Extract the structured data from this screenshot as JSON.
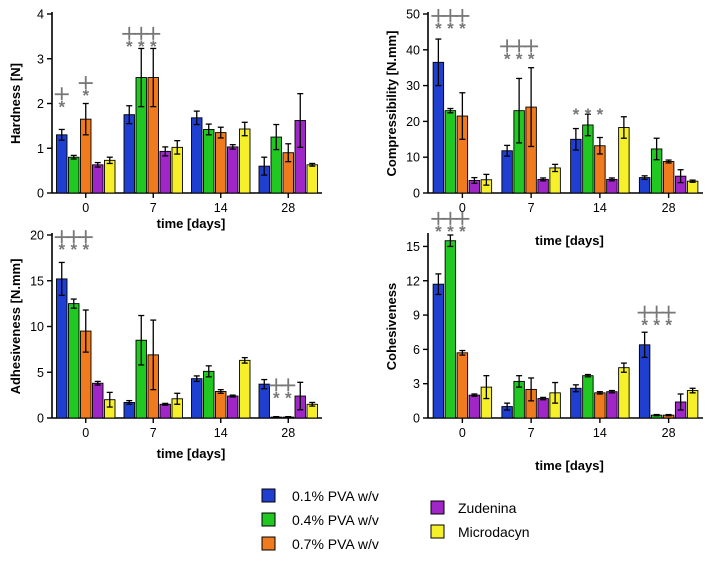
{
  "legend": [
    {
      "label": "0.1% PVA w/v",
      "color": "#1f3fd0"
    },
    {
      "label": "0.4% PVA w/v",
      "color": "#22c822"
    },
    {
      "label": "0.7% PVA w/v",
      "color": "#f07a1e"
    },
    {
      "label": "Zudenina",
      "color": "#a026c8"
    },
    {
      "label": "Microdacyn",
      "color": "#f6f02a"
    }
  ],
  "sig_symbol": "*",
  "chart_data": [
    {
      "type": "bar",
      "title": "",
      "xlabel": "time [days]",
      "ylabel": "Hardness [N]",
      "categories": [
        "0",
        "7",
        "14",
        "28"
      ],
      "ylim": [
        0,
        4
      ],
      "yticks": [
        "0",
        "1",
        "2",
        "3",
        "4"
      ],
      "series": [
        {
          "name": "0.1% PVA w/v",
          "values": [
            1.3,
            1.75,
            1.68,
            0.6
          ],
          "errors": [
            0.12,
            0.2,
            0.15,
            0.2
          ]
        },
        {
          "name": "0.4% PVA w/v",
          "values": [
            0.8,
            2.58,
            1.42,
            1.25
          ],
          "errors": [
            0.04,
            0.65,
            0.12,
            0.28
          ]
        },
        {
          "name": "0.7% PVA w/v",
          "values": [
            1.65,
            2.58,
            1.35,
            0.9
          ],
          "errors": [
            0.35,
            0.65,
            0.12,
            0.2
          ]
        },
        {
          "name": "Zudenina",
          "values": [
            0.63,
            0.93,
            1.03,
            1.62
          ],
          "errors": [
            0.05,
            0.1,
            0.05,
            0.6
          ]
        },
        {
          "name": "Microdacyn",
          "values": [
            0.73,
            1.02,
            1.43,
            0.63
          ],
          "errors": [
            0.07,
            0.15,
            0.15,
            0.03
          ]
        }
      ],
      "significance": [
        {
          "category": "0",
          "series_index": 0,
          "y": 2.05
        },
        {
          "category": "0",
          "series_index": 2,
          "y": 2.3
        },
        {
          "category": "7",
          "series_index": 0,
          "y": 3.4
        },
        {
          "category": "7",
          "series_index": 1,
          "y": 3.4
        },
        {
          "category": "7",
          "series_index": 2,
          "y": 3.4
        }
      ]
    },
    {
      "type": "bar",
      "title": "",
      "xlabel": "time [days]",
      "ylabel": "Compressibility [N.mm]",
      "categories": [
        "0",
        "7",
        "14",
        "28"
      ],
      "ylim": [
        0,
        50
      ],
      "yticks": [
        "0",
        "10",
        "20",
        "30",
        "40",
        "50"
      ],
      "series": [
        {
          "name": "0.1% PVA w/v",
          "values": [
            36.5,
            11.8,
            15.0,
            4.3
          ],
          "errors": [
            6.5,
            1.5,
            3.0,
            0.5
          ]
        },
        {
          "name": "0.4% PVA w/v",
          "values": [
            23.0,
            23.0,
            19.0,
            12.3
          ],
          "errors": [
            0.6,
            9.0,
            3.0,
            3.0
          ]
        },
        {
          "name": "0.7% PVA w/v",
          "values": [
            21.5,
            24.0,
            13.2,
            8.8
          ],
          "errors": [
            6.5,
            11.0,
            2.3,
            0.4
          ]
        },
        {
          "name": "Zudenina",
          "values": [
            3.5,
            3.8,
            3.8,
            4.7
          ],
          "errors": [
            0.8,
            0.4,
            0.4,
            1.8
          ]
        },
        {
          "name": "Microdacyn",
          "values": [
            3.7,
            7.0,
            18.3,
            3.3
          ],
          "errors": [
            1.5,
            1.0,
            3.0,
            0.3
          ]
        }
      ],
      "significance": [
        {
          "category": "0",
          "series_index": 0,
          "y": 47.5
        },
        {
          "category": "0",
          "series_index": 1,
          "y": 47.5
        },
        {
          "category": "0",
          "series_index": 2,
          "y": 47.5
        },
        {
          "category": "7",
          "series_index": 0,
          "y": 39
        },
        {
          "category": "7",
          "series_index": 1,
          "y": 39
        },
        {
          "category": "7",
          "series_index": 2,
          "y": 39
        },
        {
          "category": "14",
          "series_index": 0,
          "y": 23.5,
          "bracket": false
        },
        {
          "category": "14",
          "series_index": 1,
          "y": 23.5,
          "bracket": false
        },
        {
          "category": "14",
          "series_index": 2,
          "y": 23.5,
          "bracket": false
        }
      ]
    },
    {
      "type": "bar",
      "title": "",
      "xlabel": "time [days]",
      "ylabel": "Adhesiveness [N.mm]",
      "categories": [
        "0",
        "7",
        "14",
        "28"
      ],
      "ylim": [
        0,
        20
      ],
      "yticks": [
        "0",
        "5",
        "10",
        "15",
        "20"
      ],
      "series": [
        {
          "name": "0.1% PVA w/v",
          "values": [
            15.2,
            1.7,
            4.3,
            3.7
          ],
          "errors": [
            1.8,
            0.2,
            0.3,
            0.5
          ]
        },
        {
          "name": "0.4% PVA w/v",
          "values": [
            12.5,
            8.5,
            5.1,
            0.1
          ],
          "errors": [
            0.5,
            2.7,
            0.6,
            0.05
          ]
        },
        {
          "name": "0.7% PVA w/v",
          "values": [
            9.5,
            6.9,
            2.9,
            0.1
          ],
          "errors": [
            2.3,
            3.8,
            0.2,
            0.05
          ]
        },
        {
          "name": "Zudenina",
          "values": [
            3.8,
            1.5,
            2.4,
            2.4
          ],
          "errors": [
            0.2,
            0.1,
            0.1,
            1.5
          ]
        },
        {
          "name": "Microdacyn",
          "values": [
            2.0,
            2.1,
            6.3,
            1.5
          ],
          "errors": [
            0.8,
            0.6,
            0.3,
            0.2
          ]
        }
      ],
      "significance": [
        {
          "category": "0",
          "series_index": 0,
          "y": 19.0
        },
        {
          "category": "0",
          "series_index": 1,
          "y": 19.0
        },
        {
          "category": "0",
          "series_index": 2,
          "y": 19.0
        },
        {
          "category": "28",
          "series_index": 1,
          "y": 2.8
        },
        {
          "category": "28",
          "series_index": 2,
          "y": 2.8
        }
      ]
    },
    {
      "type": "bar",
      "title": "",
      "xlabel": "time [days]",
      "ylabel": "Cohesiveness",
      "categories": [
        "0",
        "7",
        "14",
        "28"
      ],
      "ylim": [
        0,
        16
      ],
      "yticks": [
        "0",
        "3",
        "6",
        "9",
        "12",
        "15"
      ],
      "series": [
        {
          "name": "0.1% PVA w/v",
          "values": [
            11.7,
            1.0,
            2.6,
            6.4
          ],
          "errors": [
            0.9,
            0.3,
            0.3,
            1.1
          ]
        },
        {
          "name": "0.4% PVA w/v",
          "values": [
            15.5,
            3.2,
            3.7,
            0.25
          ],
          "errors": [
            0.5,
            0.5,
            0.1,
            0.05
          ]
        },
        {
          "name": "0.7% PVA w/v",
          "values": [
            5.7,
            2.5,
            2.2,
            0.25
          ],
          "errors": [
            0.2,
            1.0,
            0.1,
            0.05
          ]
        },
        {
          "name": "Zudenina",
          "values": [
            2.0,
            1.7,
            2.3,
            1.4
          ],
          "errors": [
            0.1,
            0.1,
            0.1,
            0.7
          ]
        },
        {
          "name": "Microdacyn",
          "values": [
            2.7,
            2.2,
            4.4,
            2.4
          ],
          "errors": [
            1.0,
            0.9,
            0.4,
            0.2
          ]
        }
      ],
      "significance": [
        {
          "category": "0",
          "series_index": 0,
          "y": 16.8
        },
        {
          "category": "0",
          "series_index": 1,
          "y": 16.8
        },
        {
          "category": "0",
          "series_index": 2,
          "y": 16.8
        },
        {
          "category": "28",
          "series_index": 0,
          "y": 8.6
        },
        {
          "category": "28",
          "series_index": 1,
          "y": 8.6
        },
        {
          "category": "28",
          "series_index": 2,
          "y": 8.6
        }
      ]
    }
  ]
}
